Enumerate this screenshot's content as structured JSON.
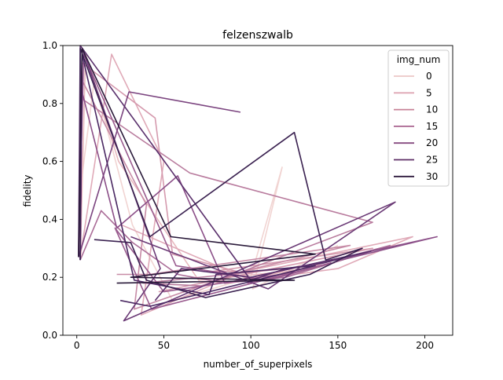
{
  "chart_data": {
    "type": "line",
    "title": "felzenszwalb",
    "xlabel": "number_of_superpixels",
    "ylabel": "fidelity",
    "xlim": [
      -8,
      216
    ],
    "ylim": [
      0.0,
      1.0
    ],
    "xticks": [
      0,
      50,
      100,
      150,
      200
    ],
    "yticks": [
      0.0,
      0.2,
      0.4,
      0.6,
      0.8,
      1.0
    ],
    "grid": false,
    "legend": {
      "title": "img_num",
      "position": "top-right",
      "entries": [
        {
          "label": "0",
          "color": "#ebc7c6"
        },
        {
          "label": "5",
          "color": "#dfa6b3"
        },
        {
          "label": "10",
          "color": "#c78297"
        },
        {
          "label": "15",
          "color": "#a9628f"
        },
        {
          "label": "20",
          "color": "#864a80"
        },
        {
          "label": "25",
          "color": "#5d2e65"
        },
        {
          "label": "30",
          "color": "#2e1a3d"
        }
      ]
    },
    "series": [
      {
        "id": "s0",
        "color": "#f1d4d2",
        "points": [
          [
            1,
            0.27
          ],
          [
            2,
            0.5
          ],
          [
            10,
            0.88
          ],
          [
            32,
            0.38
          ],
          [
            55,
            0.12
          ],
          [
            100,
            0.2
          ],
          [
            118,
            0.58
          ],
          [
            101,
            0.16
          ],
          [
            150,
            0.31
          ]
        ]
      },
      {
        "id": "s1",
        "color": "#e8b9bf",
        "points": [
          [
            2,
            0.26
          ],
          [
            5,
            0.97
          ],
          [
            24,
            0.6
          ],
          [
            70,
            0.19
          ],
          [
            120,
            0.22
          ],
          [
            148,
            0.25
          ],
          [
            102,
            0.2
          ]
        ]
      },
      {
        "id": "s2",
        "color": "#e0aab8",
        "points": [
          [
            2,
            0.27
          ],
          [
            20,
            0.97
          ],
          [
            50,
            0.6
          ],
          [
            37,
            0.07
          ],
          [
            96,
            0.22
          ],
          [
            193,
            0.34
          ],
          [
            150,
            0.23
          ],
          [
            100,
            0.19
          ],
          [
            26,
            0.38
          ]
        ]
      },
      {
        "id": "s3",
        "color": "#d59aae",
        "points": [
          [
            1,
            0.27
          ],
          [
            3,
            0.94
          ],
          [
            45,
            0.75
          ],
          [
            55,
            0.28
          ],
          [
            92,
            0.22
          ],
          [
            78,
            0.22
          ],
          [
            170,
            0.3
          ],
          [
            47,
            0.15
          ]
        ]
      },
      {
        "id": "s4",
        "color": "#c78ba6",
        "points": [
          [
            2,
            0.26
          ],
          [
            3,
            0.88
          ],
          [
            40,
            0.45
          ],
          [
            33,
            0.09
          ],
          [
            95,
            0.22
          ],
          [
            157,
            0.31
          ],
          [
            42,
            0.21
          ],
          [
            23,
            0.21
          ]
        ]
      },
      {
        "id": "s5",
        "color": "#b97c9e",
        "points": [
          [
            1,
            0.27
          ],
          [
            2,
            0.82
          ],
          [
            65,
            0.56
          ],
          [
            170,
            0.39
          ],
          [
            73,
            0.17
          ],
          [
            38,
            0.18
          ],
          [
            120,
            0.23
          ]
        ]
      },
      {
        "id": "s6",
        "color": "#aa6c97",
        "points": [
          [
            2,
            0.26
          ],
          [
            14,
            0.43
          ],
          [
            32,
            0.32
          ],
          [
            58,
            0.21
          ],
          [
            85,
            0.18
          ],
          [
            120,
            0.2
          ],
          [
            180,
            0.31
          ],
          [
            98,
            0.18
          ]
        ]
      },
      {
        "id": "s7",
        "color": "#9a5c8f",
        "points": [
          [
            1,
            0.27
          ],
          [
            4,
            0.97
          ],
          [
            57,
            0.24
          ],
          [
            110,
            0.19
          ],
          [
            146,
            0.25
          ],
          [
            43,
            0.09
          ],
          [
            22,
            0.37
          ],
          [
            50,
            0.15
          ],
          [
            128,
            0.22
          ]
        ]
      },
      {
        "id": "s8",
        "color": "#8b4f88",
        "points": [
          [
            2,
            0.26
          ],
          [
            3,
            0.84
          ],
          [
            23,
            0.37
          ],
          [
            58,
            0.55
          ],
          [
            85,
            0.18
          ],
          [
            207,
            0.34
          ],
          [
            152,
            0.26
          ]
        ]
      },
      {
        "id": "s9",
        "color": "#7b447f",
        "points": [
          [
            1,
            0.27
          ],
          [
            30,
            0.84
          ],
          [
            94,
            0.77
          ]
        ]
      },
      {
        "id": "s10",
        "color": "#6b3a76",
        "points": [
          [
            2,
            0.26
          ],
          [
            3,
            0.99
          ],
          [
            48,
            0.23
          ],
          [
            27,
            0.05
          ],
          [
            88,
            0.21
          ],
          [
            183,
            0.46
          ],
          [
            110,
            0.16
          ],
          [
            31,
            0.34
          ]
        ]
      },
      {
        "id": "s11",
        "color": "#5a306c",
        "points": [
          [
            1,
            0.27
          ],
          [
            2,
            1.0
          ],
          [
            100,
            0.19
          ],
          [
            120,
            0.23
          ],
          [
            142,
            0.25
          ],
          [
            169,
            0.29
          ],
          [
            100,
            0.2
          ],
          [
            60,
            0.23
          ],
          [
            45,
            0.12
          ]
        ]
      },
      {
        "id": "s12",
        "color": "#4a2862",
        "points": [
          [
            2,
            0.26
          ],
          [
            3,
            0.97
          ],
          [
            33,
            0.19
          ],
          [
            76,
            0.14
          ],
          [
            80,
            0.21
          ],
          [
            137,
            0.24
          ],
          [
            42,
            0.1
          ],
          [
            25,
            0.12
          ]
        ]
      },
      {
        "id": "s13",
        "color": "#3a2150",
        "points": [
          [
            2,
            0.26
          ],
          [
            2,
            0.99
          ],
          [
            42,
            0.34
          ],
          [
            125,
            0.7
          ],
          [
            143,
            0.26
          ],
          [
            164,
            0.3
          ],
          [
            134,
            0.21
          ],
          [
            74,
            0.13
          ],
          [
            40,
            0.19
          ],
          [
            31,
            0.32
          ],
          [
            10,
            0.33
          ]
        ]
      },
      {
        "id": "s14",
        "color": "#2a1a3a",
        "points": [
          [
            1,
            0.27
          ],
          [
            3,
            0.99
          ],
          [
            54,
            0.34
          ],
          [
            137,
            0.28
          ],
          [
            31,
            0.2
          ],
          [
            125,
            0.19
          ],
          [
            23,
            0.18
          ]
        ]
      }
    ]
  }
}
